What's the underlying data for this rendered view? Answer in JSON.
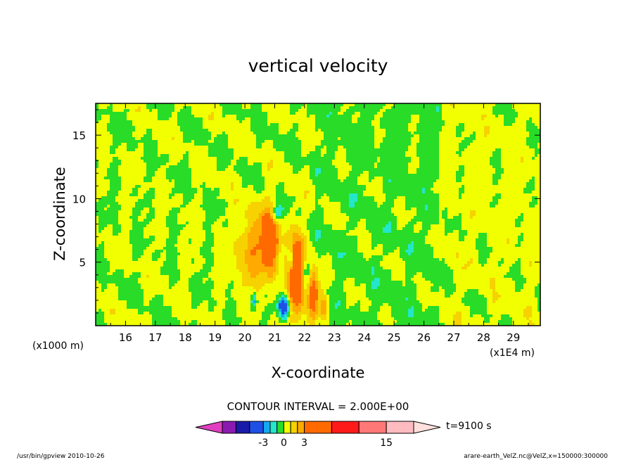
{
  "chart_data": {
    "type": "heatmap",
    "title": "vertical velocity",
    "xlabel": "X-coordinate",
    "ylabel": "Z-coordinate",
    "x_unit_left": "(x1000 m)",
    "x_unit_right": "(x1E4 m)",
    "x_ticks": [
      "16",
      "17",
      "18",
      "19",
      "20",
      "21",
      "22",
      "23",
      "24",
      "25",
      "26",
      "27",
      "28",
      "29"
    ],
    "y_ticks": [
      "5",
      "10",
      "15"
    ],
    "xlim": [
      15.0,
      29.9
    ],
    "ylim": [
      0.0,
      17.5
    ],
    "contour_interval_label": "CONTOUR INTERVAL = 2.000E+00",
    "time_label": "t=9100 s",
    "colorbar": {
      "tick_labels": [
        "-3",
        "0",
        "3",
        "15"
      ],
      "tick_values": [
        -3,
        0,
        3,
        15
      ],
      "bins": [
        {
          "lo": null,
          "hi": -9,
          "color": "#e040c0"
        },
        {
          "lo": -9,
          "hi": -7,
          "color": "#8a1ab0"
        },
        {
          "lo": -7,
          "hi": -5,
          "color": "#1a1aa8"
        },
        {
          "lo": -5,
          "hi": -3,
          "color": "#1e50e6"
        },
        {
          "lo": -3,
          "hi": -2,
          "color": "#14aaf0"
        },
        {
          "lo": -2,
          "hi": -1,
          "color": "#24e6c8"
        },
        {
          "lo": -1,
          "hi": 0,
          "color": "#28dc28"
        },
        {
          "lo": 0,
          "hi": 1,
          "color": "#f2ff00"
        },
        {
          "lo": 1,
          "hi": 2,
          "color": "#f5d200"
        },
        {
          "lo": 2,
          "hi": 3,
          "color": "#ffaa00"
        },
        {
          "lo": 3,
          "hi": 7,
          "color": "#ff6a00"
        },
        {
          "lo": 7,
          "hi": 11,
          "color": "#ff1a1a"
        },
        {
          "lo": 11,
          "hi": 15,
          "color": "#ff7878"
        },
        {
          "lo": 15,
          "hi": 19,
          "color": "#ffbcc0"
        },
        {
          "lo": 19,
          "hi": null,
          "color": "#ffe0dc"
        }
      ]
    },
    "features": [
      {
        "x": 20.2,
        "z": 6.0,
        "sx": 0.35,
        "sz": 2.2,
        "amp": 2.6
      },
      {
        "x": 20.85,
        "z": 6.8,
        "sx": 0.2,
        "sz": 1.8,
        "amp": 6.0
      },
      {
        "x": 21.75,
        "z": 4.0,
        "sx": 0.22,
        "sz": 2.0,
        "amp": 6.5
      },
      {
        "x": 22.3,
        "z": 2.5,
        "sx": 0.15,
        "sz": 1.3,
        "amp": 4.5
      },
      {
        "x": 22.65,
        "z": 1.5,
        "sx": 0.07,
        "sz": 0.8,
        "amp": 3.2
      },
      {
        "x": 21.3,
        "z": 1.5,
        "sx": 0.13,
        "sz": 0.6,
        "amp": -5.5
      },
      {
        "x": 21.0,
        "z": 8.8,
        "sx": 0.15,
        "sz": 0.6,
        "amp": -2.8
      },
      {
        "x": 21.55,
        "z": 5.3,
        "sx": 0.08,
        "sz": 0.8,
        "amp": -3.2
      },
      {
        "x": 22.05,
        "z": 4.0,
        "sx": 0.12,
        "sz": 1.2,
        "amp": -3.0
      },
      {
        "x": 20.3,
        "z": 2.0,
        "sx": 0.07,
        "sz": 0.5,
        "amp": -3.2
      }
    ]
  },
  "footer": {
    "left": "/usr/bin/gpview   2010-10-26",
    "right": "arare-earth_VelZ.nc@VelZ,x=150000:300000"
  }
}
